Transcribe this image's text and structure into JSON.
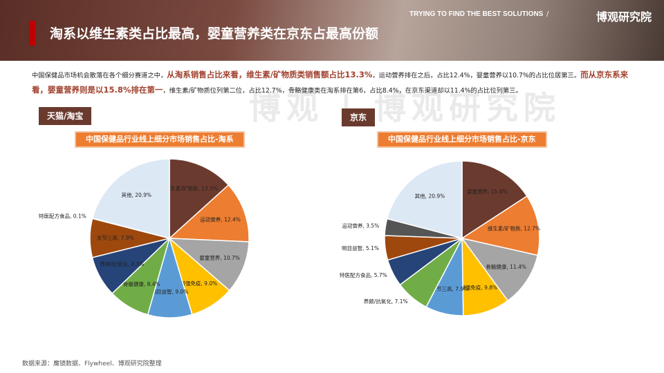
{
  "header": {
    "title": "淘系以维生素类占比最高，婴童营养类在京东占最高份额",
    "slogan": "TRYING TO FIND THE BEST SOLUTIONS",
    "separator": "/",
    "brand": "博观研究院"
  },
  "intro": [
    {
      "text": "中国保健品市场机会散落在各个细分赛道之中，",
      "bold": false
    },
    {
      "text": "从淘系销售占比来看，维生素/矿物质类销售额占比13.3%",
      "bold": true
    },
    {
      "text": "，运动营养排在之后，占比12.4%，婴童营养以10.7%的占比位居第三。",
      "bold": false
    },
    {
      "text": "而从京东系来看，婴童营养则是以15.8%排在第一",
      "bold": true
    },
    {
      "text": "，维生素/矿物质位列第二位，占比12.7%，骨骼健康类在淘系排在第6，占比8.4%，在京东渠道却以11.4%的占比位列第三。",
      "bold": false
    }
  ],
  "watermark": "博观 | 博观研究院",
  "source": "数据来源：魔镜数据、Flywheel、博观研究院整理",
  "chart_data": [
    {
      "type": "pie",
      "subtitle": "天猫/淘宝",
      "title": "中国保健品行业线上细分市场销售占比-淘系",
      "labels": [
        "维生素/矿物质, 13.3%",
        "运动营养, 12.4%",
        "婴童营养, 10.7%",
        "增强免疫, 9.0%",
        "明目益智, 9.0%",
        "骨骼健康, 8.4%",
        "养颜/抗氧化, 8.3%",
        "关节三高, 7.9%",
        "特医配方食品, 0.1%",
        "其他, 20.9%"
      ],
      "values": [
        13.3,
        12.4,
        10.7,
        9.0,
        9.0,
        8.4,
        8.3,
        7.9,
        0.1,
        20.9
      ],
      "colors": [
        "#6b3a2e",
        "#ed7d31",
        "#a5a5a5",
        "#ffc000",
        "#5b9bd5",
        "#70ad47",
        "#264478",
        "#9e480e",
        "#636363",
        "#dde8f5"
      ]
    },
    {
      "type": "pie",
      "subtitle": "京东",
      "title": "中国保健品行业线上细分市场销售占比-京东",
      "labels": [
        "婴童营养, 15.8%",
        "维生素/矿物质, 12.7%",
        "骨骼健康, 11.4%",
        "增强免疫, 9.8%",
        "关节三高, 7.9%",
        "养颜/抗氧化, 7.1%",
        "特医配方食品, 5.7%",
        "明目益智, 5.1%",
        "运动营养, 3.5%",
        "其他, 20.9%"
      ],
      "values": [
        15.8,
        12.7,
        11.4,
        9.8,
        7.9,
        7.1,
        5.7,
        5.1,
        3.5,
        20.9
      ],
      "colors": [
        "#6b3a2e",
        "#ed7d31",
        "#a5a5a5",
        "#ffc000",
        "#5b9bd5",
        "#70ad47",
        "#264478",
        "#9e480e",
        "#555555",
        "#dde8f5"
      ]
    }
  ]
}
